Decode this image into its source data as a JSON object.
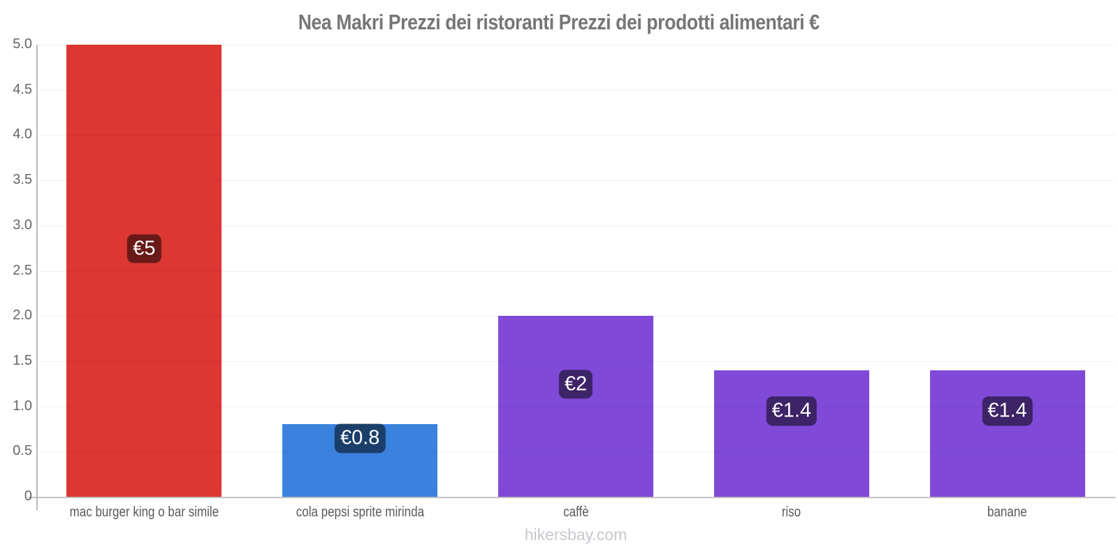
{
  "title": "Nea Makri Prezzi dei ristoranti Prezzi dei prodotti alimentari €",
  "footer": "hikersbay.com",
  "colors": {
    "title_text": "#767676",
    "axis_line": "#c3c3c3",
    "gridline_overlay": "rgba(0,0,0,0.05)",
    "tick_text": "#666666",
    "category_text": "#58595b",
    "footer_text": "#c5c8ce",
    "value_label_bg": "rgba(0,0,0,0.52)",
    "value_label_text": "#ffffff",
    "red_bar": "#dc3732",
    "blue_bar": "#3b82de",
    "purple_bar": "#8049d8"
  },
  "chart_data": {
    "type": "bar",
    "title": "Nea Makri Prezzi dei ristoranti Prezzi dei prodotti alimentari €",
    "categories": [
      "mac burger king o bar simile",
      "cola pepsi sprite mirinda",
      "caffè",
      "riso",
      "banane"
    ],
    "values": [
      5,
      0.8,
      2,
      1.4,
      1.4
    ],
    "data_labels": [
      "€5",
      "€0.8",
      "€2",
      "€1.4",
      "€1.4"
    ],
    "bar_colors": [
      "#dc3732",
      "#3b82de",
      "#8049d8",
      "#8049d8",
      "#8049d8"
    ],
    "y_tick_labels": [
      "5.0",
      "4.5",
      "4.0",
      "3.5",
      "3.0",
      "2.5",
      "2.0",
      "1.5",
      "1.0",
      "0.5",
      "0"
    ],
    "xlabel": "",
    "ylabel": "",
    "ylim": [
      0,
      5
    ],
    "grid": true,
    "legend": false,
    "currency": "€",
    "watermark": "hikersbay.com"
  }
}
